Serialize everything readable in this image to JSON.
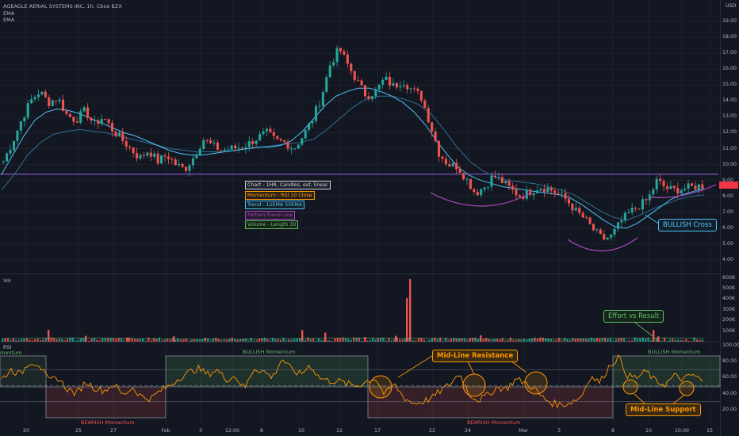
{
  "header": {
    "symbol_line": "AGEAGLE AERIAL SYSTEMS INC, 1h, Cboe BZX",
    "ema1": "EMA",
    "ema2": "EMA",
    "currency": "USD"
  },
  "legend": [
    "Chart - 1HR, Candles, ext, linear",
    "Momentum - RSI 10 Close",
    "Trend - 12EMA 50EMA",
    "Pattern/Trend Line",
    "Volume - Length 30"
  ],
  "volume_pane": {
    "label": "Vol"
  },
  "rsi_pane": {
    "label": "RSI",
    "edge_label": "mentum"
  },
  "annotations": {
    "bullish_cross": "BULLISH Cross",
    "effort": "Effort vs Result",
    "midline_resistance": "Mid-Line Resistance",
    "midline_support": "Mid-Line Support",
    "bullish_zone_1": "BULLISH Momentum",
    "bullish_zone_2": "BULLISH Momentum",
    "bearish_zone_1": "BEARISH Momentum",
    "bearish_zone_2": "BEARISH Momentum"
  },
  "colors": {
    "up": "#26a69a",
    "down": "#ef5350",
    "ema_fast": "#4fc3f7",
    "ema_slow": "#2e6f96",
    "resistance": "#7e57c2",
    "pattern": "#ab47bc",
    "rsi": "#ff9800",
    "bull_zone": "#66bb6a",
    "bear_zone": "#ef5350",
    "last_price": "#f23645"
  },
  "chart_data": [
    {
      "type": "line",
      "title": "AGEAGLE AERIAL SYSTEMS INC, 1h, Cboe BZX",
      "subtype": "candlestick",
      "ylabel": "USD",
      "ylim": [
        3.5,
        19.5
      ],
      "y_ticks": [
        "19.00",
        "18.00",
        "17.00",
        "16.00",
        "15.00",
        "14.00",
        "13.00",
        "12.00",
        "11.00",
        "10.00",
        "9.00",
        "8.00",
        "7.00",
        "6.00",
        "5.00",
        "4.00"
      ],
      "x_ticks": [
        "20",
        "25",
        "27",
        "Feb",
        "3",
        "12:00",
        "8",
        "10",
        "12",
        "17",
        "22",
        "24",
        "Mar",
        "3",
        "8",
        "10",
        "10:00",
        "15"
      ],
      "close_path": [
        10.2,
        11.4,
        12.8,
        14.0,
        14.6,
        13.9,
        14.2,
        13.1,
        12.8,
        13.4,
        12.5,
        13.0,
        12.2,
        11.6,
        11.0,
        10.4,
        10.9,
        10.2,
        10.6,
        10.0,
        9.7,
        10.5,
        11.6,
        11.2,
        10.9,
        11.0,
        11.1,
        11.3,
        11.7,
        12.0,
        11.5,
        11.4,
        11.0,
        11.8,
        12.8,
        14.2,
        16.3,
        17.3,
        16.2,
        15.2,
        14.3,
        14.6,
        15.4,
        14.9,
        15.3,
        14.7,
        14.3,
        12.6,
        10.7,
        10.0,
        9.9,
        9.1,
        8.2,
        8.6,
        9.3,
        8.9,
        8.4,
        8.0,
        8.3,
        8.6,
        8.5,
        8.2,
        7.8,
        7.1,
        6.6,
        5.9,
        5.3,
        5.5,
        6.4,
        7.0,
        7.4,
        7.8,
        9.0,
        8.5,
        8.4,
        8.5,
        8.6,
        8.7
      ],
      "ema_fast": [
        9.4,
        10.6,
        11.8,
        12.8,
        13.3,
        13.5,
        13.4,
        13.2,
        12.9,
        12.6,
        12.3,
        12.0,
        11.8,
        11.5,
        11.2,
        10.9,
        10.7,
        10.6,
        10.6,
        10.7,
        10.8,
        10.9,
        11.0,
        11.1,
        11.1,
        11.2,
        11.5,
        12.1,
        12.9,
        13.7,
        14.3,
        14.6,
        14.8,
        14.8,
        14.6,
        14.3,
        13.9,
        13.3,
        12.5,
        11.5,
        10.6,
        9.8,
        9.3,
        9.0,
        8.8,
        8.6,
        8.5,
        8.4,
        8.3,
        8.2,
        8.1,
        7.9,
        7.5,
        7.0,
        6.5,
        6.1,
        6.0,
        6.3,
        6.8,
        7.3,
        7.8,
        8.1,
        8.3,
        8.5
      ],
      "ema_slow": [
        8.4,
        9.4,
        10.6,
        11.4,
        11.9,
        12.1,
        12.2,
        12.1,
        12.0,
        11.8,
        11.6,
        11.4,
        11.2,
        11.0,
        10.9,
        10.8,
        10.8,
        10.8,
        10.9,
        11.0,
        11.1,
        11.2,
        11.3,
        11.4,
        11.6,
        12.2,
        12.9,
        13.6,
        14.1,
        14.3,
        14.3,
        14.1,
        13.8,
        13.2,
        12.2,
        11.1,
        10.2,
        9.6,
        9.2,
        9.0,
        8.9,
        8.8,
        8.6,
        8.4,
        8.1,
        7.6,
        7.1,
        6.7,
        6.5,
        6.8,
        7.2,
        7.5,
        7.8,
        8.0,
        8.1
      ],
      "horizontal_resistance": 9.4,
      "last_price": 8.4
    },
    {
      "type": "bar",
      "title": "Vol",
      "ylim": [
        0,
        650000
      ],
      "y_ticks": [
        "600K",
        "500K",
        "400K",
        "300K",
        "200K",
        "100K"
      ],
      "spikes": [
        [
          60,
          110000
        ],
        [
          107,
          55000
        ],
        [
          160,
          40000
        ],
        [
          218,
          50000
        ],
        [
          380,
          110000
        ],
        [
          409,
          85000
        ],
        [
          459,
          45000
        ],
        [
          498,
          55000
        ],
        [
          512,
          410000
        ],
        [
          516,
          590000
        ],
        [
          605,
          60000
        ],
        [
          823,
          110000
        ],
        [
          829,
          50000
        ]
      ]
    },
    {
      "type": "line",
      "title": "RSI 10 Close",
      "ylim": [
        0,
        100
      ],
      "y_ticks": [
        "100.00",
        "80.00",
        "60.00",
        "40.00",
        "20.00"
      ],
      "bands": {
        "upper": 70,
        "mid": 50,
        "lower": 30
      },
      "rsi_path": [
        58,
        70,
        64,
        80,
        77,
        56,
        60,
        46,
        40,
        55,
        47,
        44,
        52,
        38,
        48,
        36,
        34,
        44,
        50,
        60,
        66,
        72,
        64,
        70,
        58,
        62,
        46,
        72,
        68,
        60,
        84,
        70,
        64,
        76,
        60,
        56,
        56,
        52,
        50,
        55,
        60,
        38,
        52,
        36,
        28,
        30,
        34,
        44,
        52,
        66,
        40,
        32,
        38,
        48,
        46,
        58,
        54,
        46,
        34,
        28,
        26,
        30,
        36,
        62,
        54,
        74,
        86,
        62,
        60,
        68,
        55,
        52,
        62,
        58,
        64,
        55
      ]
    }
  ]
}
